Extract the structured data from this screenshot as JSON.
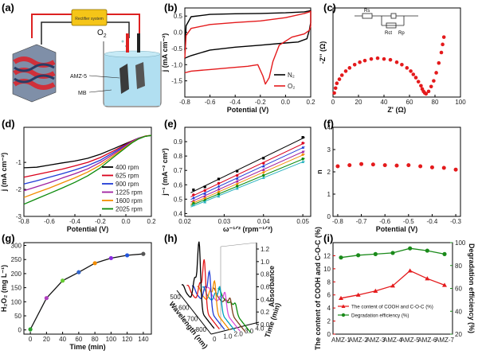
{
  "panel_labels": {
    "a": "(a)",
    "b": "(b)",
    "c": "(c)",
    "d": "(d)",
    "e": "(e)",
    "f": "(f)",
    "g": "(g)",
    "h": "(h)",
    "i": "(i)"
  },
  "schematic": {
    "rectifier": "Rectifier system",
    "o2": "O",
    "o2_sub": "2",
    "amz": "AMZ-5",
    "mb": "MB"
  },
  "chart_data": [
    {
      "id": "b",
      "type": "line",
      "xlabel": "Potential (V)",
      "ylabel": "j (mA cm⁻²)",
      "xlim": [
        -0.8,
        0.2
      ],
      "ylim": [
        -2.0,
        0.75
      ],
      "xticks": [
        "-0.8",
        "-0.6",
        "-0.4",
        "-0.2",
        "0.0",
        "0.2"
      ],
      "yticks": [
        "0.5",
        "0.0",
        "-0.5",
        "-1.0",
        "-1.5"
      ],
      "legend": "center-right",
      "series": [
        {
          "name": "N₂",
          "color": "#000000",
          "x": [
            -0.8,
            -0.79,
            -0.75,
            -0.6,
            -0.4,
            -0.2,
            0.0,
            0.15,
            0.19,
            0.2,
            0.2,
            0.19,
            0.17,
            0.1,
            0.0,
            -0.2,
            -0.4,
            -0.6,
            -0.75,
            -0.8
          ],
          "y": [
            -0.55,
            0.2,
            0.48,
            0.55,
            0.57,
            0.58,
            0.6,
            0.63,
            0.66,
            0.68,
            0.3,
            0.08,
            -0.2,
            -0.3,
            -0.33,
            -0.4,
            -0.46,
            -0.55,
            -0.72,
            -0.8
          ]
        },
        {
          "name": "O₂",
          "color": "#e41a1c",
          "x": [
            -0.8,
            -0.79,
            -0.75,
            -0.6,
            -0.4,
            -0.2,
            0.0,
            0.15,
            0.19,
            0.2,
            0.2,
            0.19,
            0.15,
            0.05,
            -0.05,
            -0.1,
            -0.13,
            -0.16,
            -0.18,
            -0.22,
            -0.3,
            -0.45,
            -0.6,
            -0.75,
            -0.8
          ],
          "y": [
            -0.8,
            -0.1,
            0.12,
            0.24,
            0.3,
            0.35,
            0.45,
            0.58,
            0.63,
            0.65,
            0.2,
            0.06,
            -0.05,
            -0.15,
            -0.4,
            -0.9,
            -1.4,
            -1.6,
            -1.35,
            -1.0,
            -1.05,
            -1.1,
            -1.15,
            -1.2,
            -1.25
          ]
        }
      ]
    },
    {
      "id": "c",
      "type": "scatter",
      "xlabel": "Z' (Ω)",
      "ylabel": "-Z'' (Ω)",
      "xlim": [
        0,
        100
      ],
      "ylim": [
        0,
        110
      ],
      "xticks": [
        "0",
        "20",
        "40",
        "60",
        "80",
        "100"
      ],
      "yticks": [],
      "circuit": {
        "r1": "R",
        "r1_sub": "s",
        "r2": "R",
        "r2_sub": "ct",
        "r3": "R",
        "r3_sub": "p"
      },
      "color": "#e41a1c",
      "x": [
        1,
        2,
        3,
        5,
        7,
        10,
        13,
        17,
        21,
        25,
        30,
        35,
        40,
        45,
        50,
        54,
        58,
        61,
        63,
        65,
        67,
        69,
        70,
        71,
        72,
        73,
        75,
        77,
        79,
        81,
        83,
        85,
        86,
        87
      ],
      "y": [
        5,
        11,
        17,
        22,
        27,
        32,
        36,
        40,
        43,
        45,
        47,
        48,
        47,
        46,
        43,
        40,
        36,
        32,
        28,
        24,
        19,
        14,
        10,
        7,
        5,
        4,
        7,
        13,
        20,
        30,
        42,
        55,
        65,
        74
      ]
    },
    {
      "id": "d",
      "type": "line",
      "xlabel": "Potential (V)",
      "ylabel": "j (mA cm⁻²)",
      "xlim": [
        -0.8,
        0.2
      ],
      "ylim": [
        -3.0,
        0.3
      ],
      "xticks": [
        "-0.8",
        "-0.6",
        "-0.4",
        "-0.2",
        "0.0",
        "0.2"
      ],
      "yticks": [
        "-1",
        "-2",
        "-3"
      ],
      "legend": "bottom-right",
      "series": [
        {
          "name": "400 rpm",
          "color": "#000000",
          "x": [
            -0.8,
            -0.7,
            -0.6,
            -0.5,
            -0.4,
            -0.3,
            -0.2,
            -0.1,
            0.0,
            0.05,
            0.1,
            0.15,
            0.2
          ],
          "y": [
            -1.2,
            -1.18,
            -1.1,
            -1.02,
            -0.95,
            -0.85,
            -0.7,
            -0.5,
            -0.3,
            -0.2,
            -0.1,
            -0.03,
            0.0
          ]
        },
        {
          "name": "625 rpm",
          "color": "#d9001b",
          "x": [
            -0.8,
            -0.7,
            -0.6,
            -0.5,
            -0.4,
            -0.3,
            -0.2,
            -0.1,
            0.0,
            0.05,
            0.1,
            0.15,
            0.2
          ],
          "y": [
            -1.55,
            -1.45,
            -1.35,
            -1.25,
            -1.13,
            -1.0,
            -0.82,
            -0.58,
            -0.33,
            -0.2,
            -0.1,
            -0.03,
            0.0
          ]
        },
        {
          "name": "900 rpm",
          "color": "#1f3bd6",
          "x": [
            -0.8,
            -0.7,
            -0.6,
            -0.5,
            -0.4,
            -0.3,
            -0.2,
            -0.1,
            0.0,
            0.05,
            0.1,
            0.15,
            0.2
          ],
          "y": [
            -1.8,
            -1.68,
            -1.55,
            -1.42,
            -1.28,
            -1.12,
            -0.92,
            -0.64,
            -0.36,
            -0.22,
            -0.1,
            -0.03,
            0.0
          ]
        },
        {
          "name": "1225 rpm",
          "color": "#a020a0",
          "x": [
            -0.8,
            -0.7,
            -0.6,
            -0.5,
            -0.4,
            -0.3,
            -0.2,
            -0.1,
            0.0,
            0.05,
            0.1,
            0.15,
            0.2
          ],
          "y": [
            -2.05,
            -1.9,
            -1.75,
            -1.58,
            -1.42,
            -1.24,
            -1.0,
            -0.7,
            -0.39,
            -0.23,
            -0.11,
            -0.03,
            0.0
          ]
        },
        {
          "name": "1600 rpm",
          "color": "#f28c00",
          "x": [
            -0.8,
            -0.7,
            -0.6,
            -0.5,
            -0.4,
            -0.3,
            -0.2,
            -0.1,
            0.0,
            0.05,
            0.1,
            0.15,
            0.2
          ],
          "y": [
            -2.3,
            -2.12,
            -1.95,
            -1.76,
            -1.57,
            -1.36,
            -1.1,
            -0.76,
            -0.42,
            -0.25,
            -0.12,
            -0.03,
            0.0
          ]
        },
        {
          "name": "2025 rpm",
          "color": "#0a8a0a",
          "x": [
            -0.8,
            -0.7,
            -0.6,
            -0.5,
            -0.4,
            -0.3,
            -0.2,
            -0.1,
            0.0,
            0.05,
            0.1,
            0.15,
            0.2
          ],
          "y": [
            -2.55,
            -2.35,
            -2.15,
            -1.95,
            -1.74,
            -1.5,
            -1.2,
            -0.82,
            -0.45,
            -0.27,
            -0.13,
            -0.04,
            0.0
          ]
        }
      ]
    },
    {
      "id": "e",
      "type": "scatter",
      "xlabel": "ω⁻¹ᐟ² (rpm⁻¹ᐟ²)",
      "ylabel": "j⁻¹ (mA⁻² cm²)",
      "xlim": [
        0.02,
        0.052
      ],
      "ylim": [
        0.38,
        1.0
      ],
      "xticks": [
        "0.02",
        "0.03",
        "0.04",
        "0.05"
      ],
      "yticks": [
        "0.4",
        "0.5",
        "0.6",
        "0.7",
        "0.8",
        "0.9"
      ],
      "x": [
        0.0222,
        0.0251,
        0.0286,
        0.0333,
        0.04,
        0.05
      ],
      "series": [
        {
          "color": "#000000",
          "y": [
            0.565,
            0.585,
            0.64,
            0.695,
            0.785,
            0.93
          ]
        },
        {
          "color": "#d9001b",
          "y": [
            0.53,
            0.56,
            0.61,
            0.665,
            0.75,
            0.89
          ]
        },
        {
          "color": "#1f3bd6",
          "y": [
            0.51,
            0.54,
            0.59,
            0.645,
            0.73,
            0.86
          ]
        },
        {
          "color": "#a020a0",
          "y": [
            0.49,
            0.52,
            0.57,
            0.625,
            0.705,
            0.83
          ]
        },
        {
          "color": "#f28c00",
          "y": [
            0.48,
            0.505,
            0.55,
            0.605,
            0.685,
            0.81
          ]
        },
        {
          "color": "#0a8a0a",
          "y": [
            0.47,
            0.49,
            0.535,
            0.59,
            0.665,
            0.78
          ]
        },
        {
          "color": "#2bb3c0",
          "y": [
            0.46,
            0.48,
            0.52,
            0.575,
            0.65,
            0.76
          ]
        }
      ]
    },
    {
      "id": "f",
      "type": "scatter",
      "xlabel": "Potential (V)",
      "ylabel": "n",
      "xlim": [
        -0.82,
        -0.28
      ],
      "ylim": [
        0,
        4
      ],
      "xticks": [
        "-0.8",
        "-0.7",
        "-0.6",
        "-0.5",
        "-0.4",
        "-0.3"
      ],
      "yticks": [
        "0",
        "1",
        "2",
        "3",
        "4"
      ],
      "color": "#e41a1c",
      "x": [
        -0.8,
        -0.75,
        -0.7,
        -0.65,
        -0.6,
        -0.55,
        -0.5,
        -0.45,
        -0.4,
        -0.35,
        -0.3
      ],
      "y": [
        2.25,
        2.3,
        2.35,
        2.33,
        2.3,
        2.28,
        2.3,
        2.25,
        2.2,
        2.18,
        2.1
      ]
    },
    {
      "id": "g",
      "type": "line",
      "xlabel": "Time (min)",
      "ylabel": "H₂O₂ (mg L⁻¹)",
      "xlim": [
        -8,
        150
      ],
      "ylim": [
        -15,
        310
      ],
      "xticks": [
        "0",
        "20",
        "40",
        "60",
        "80",
        "100",
        "120",
        "140"
      ],
      "yticks": [
        "0",
        "50",
        "100",
        "150",
        "200",
        "250",
        "300"
      ],
      "x": [
        0,
        20,
        40,
        60,
        80,
        100,
        120,
        140
      ],
      "y": [
        2,
        113,
        175,
        205,
        237,
        255,
        265,
        270
      ],
      "colors": [
        "#2aa02b",
        "#b040c0",
        "#66cc33",
        "#3366cc",
        "#f28c00",
        "#8a2be2",
        "#2255dd",
        "#555555"
      ]
    },
    {
      "id": "h",
      "type": "line",
      "xlabel": "Wavelength (nm)",
      "ylabel": "Absorbance",
      "zlabel": "Time (min)",
      "wavelength_ticks": [
        "500",
        "600",
        "700",
        "800"
      ],
      "time_ticks": [
        "0",
        "0.5",
        "1.0",
        "1.5",
        "2.0",
        "2.5",
        "3.0",
        "3.5",
        "4.0",
        "4.5"
      ],
      "absorbance_ticks": [
        "0.0",
        "0.2",
        "0.4",
        "0.6",
        "0.8",
        "1.0",
        "1.2"
      ],
      "wavelength_range": [
        450,
        850
      ],
      "series": [
        {
          "time": 0,
          "color": "#000000",
          "peak": 1.05,
          "shoulder": 0.4
        },
        {
          "time": 0.5,
          "color": "#e41a1c",
          "peak": 0.78,
          "shoulder": 0.33
        },
        {
          "time": 1.0,
          "color": "#1f3bd6",
          "peak": 0.6,
          "shoulder": 0.28
        },
        {
          "time": 1.5,
          "color": "#f28c00",
          "peak": 0.46,
          "shoulder": 0.23
        },
        {
          "time": 2.0,
          "color": "#00a0c0",
          "peak": 0.38,
          "shoulder": 0.2
        },
        {
          "time": 2.5,
          "color": "#d94fd9",
          "peak": 0.3,
          "shoulder": 0.16
        },
        {
          "time": 3.0,
          "color": "#7b3f1d",
          "peak": 0.22,
          "shoulder": 0.12
        },
        {
          "time": 3.5,
          "color": "#0a8a0a",
          "peak": 0.15,
          "shoulder": 0.08
        }
      ]
    },
    {
      "id": "i",
      "type": "line",
      "ylabel": "The content of COOH and C-O-C (%)",
      "ylabel2": "Degradation efficiency (%)",
      "ylim": [
        0,
        14
      ],
      "ylim2": [
        20,
        100
      ],
      "yticks": [
        "0",
        "2",
        "4",
        "6",
        "8",
        "10",
        "12"
      ],
      "yticks2": [
        "20",
        "40",
        "60",
        "80",
        "100"
      ],
      "categories": [
        "AMZ-1",
        "AMZ-2",
        "AMZ-3",
        "AMZ-4",
        "AMZ-5",
        "AMZ-6",
        "AMZ-7"
      ],
      "legend": "bottom-center",
      "series": [
        {
          "name": "The content of COOH and C-O-C (%)",
          "axis": "left",
          "color": "#e41a1c",
          "marker": "triangle",
          "values": [
            5.5,
            6.0,
            6.6,
            7.4,
            9.7,
            8.5,
            7.5
          ]
        },
        {
          "name": "Degradation efficiency (%)",
          "axis": "right",
          "color": "#1a8a1a",
          "marker": "circle",
          "values": [
            87,
            89,
            90,
            91,
            95,
            93,
            90
          ]
        }
      ]
    }
  ]
}
